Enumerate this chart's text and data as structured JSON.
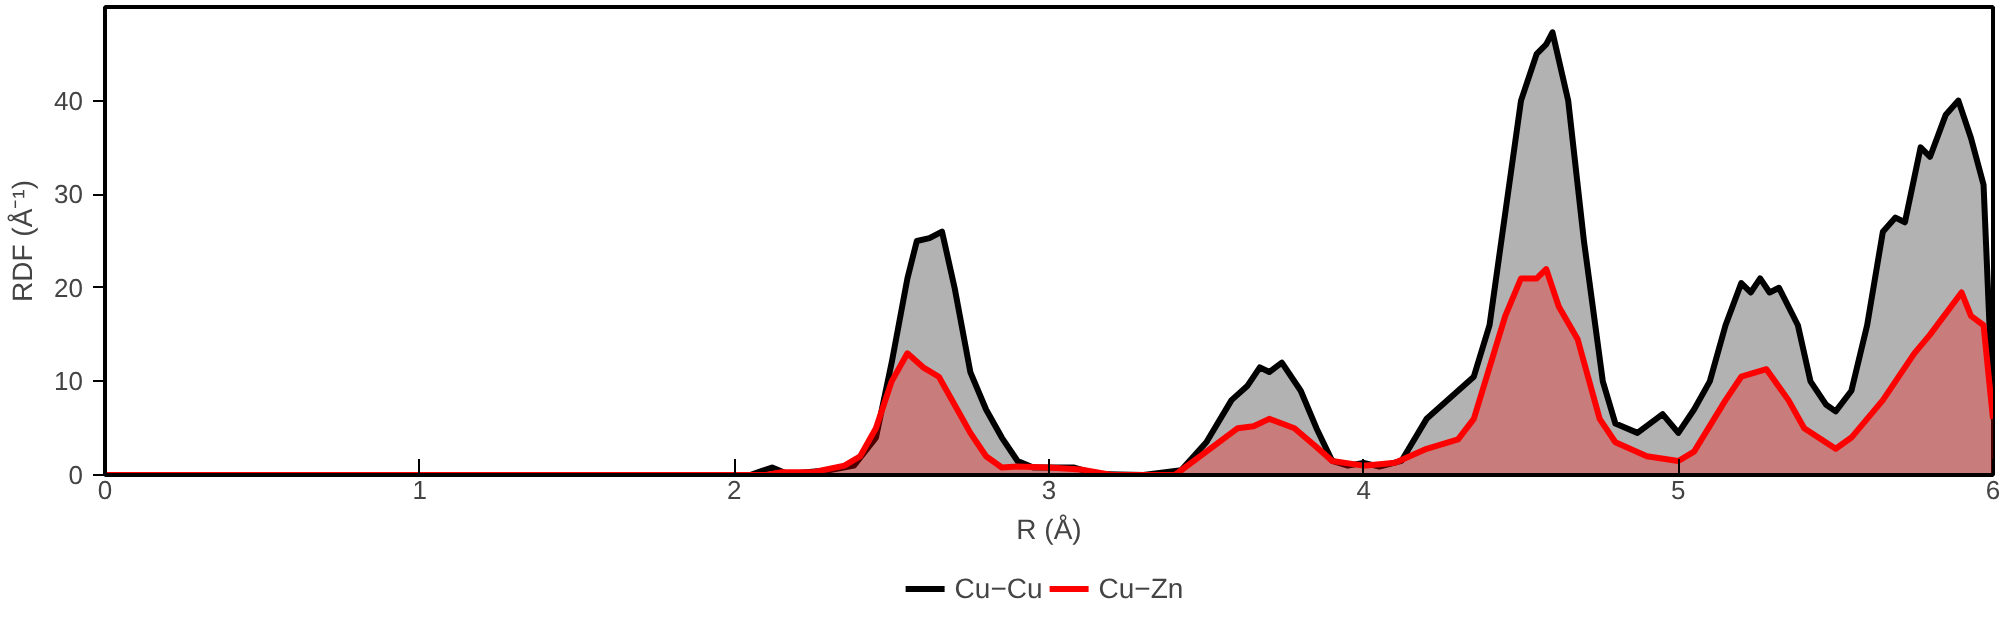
{
  "chart_data": {
    "type": "area",
    "xlabel": "R (Å)",
    "ylabel": "RDF (Å⁻¹)",
    "xlim": [
      0,
      6
    ],
    "ylim": [
      0,
      50
    ],
    "xticks": [
      0,
      1,
      2,
      3,
      4,
      5,
      6
    ],
    "yticks": [
      0,
      10,
      20,
      30,
      40
    ],
    "grid": false,
    "legend": "bottom",
    "series": [
      {
        "name": "Cu−Cu",
        "color": "#000000",
        "x": [
          0,
          2.05,
          2.12,
          2.17,
          2.3,
          2.38,
          2.45,
          2.5,
          2.55,
          2.58,
          2.62,
          2.66,
          2.7,
          2.75,
          2.8,
          2.85,
          2.9,
          2.95,
          3.0,
          3.08,
          3.15,
          3.3,
          3.42,
          3.5,
          3.58,
          3.63,
          3.67,
          3.7,
          3.74,
          3.8,
          3.85,
          3.9,
          3.95,
          4.0,
          4.05,
          4.12,
          4.2,
          4.3,
          4.35,
          4.4,
          4.45,
          4.5,
          4.55,
          4.58,
          4.6,
          4.65,
          4.7,
          4.76,
          4.8,
          4.87,
          4.95,
          5.0,
          5.05,
          5.1,
          5.15,
          5.2,
          5.23,
          5.26,
          5.29,
          5.32,
          5.38,
          5.42,
          5.47,
          5.5,
          5.55,
          5.6,
          5.65,
          5.69,
          5.72,
          5.77,
          5.8,
          5.85,
          5.89,
          5.93,
          5.97,
          6.0
        ],
        "values": [
          0,
          0,
          0.8,
          0.1,
          0.5,
          1.0,
          4,
          12,
          21,
          25,
          25.3,
          26,
          20,
          11,
          7,
          4,
          1.5,
          0.8,
          0.8,
          0.8,
          0.1,
          0,
          0.5,
          3.5,
          8,
          9.5,
          11.5,
          11,
          12,
          9,
          5,
          1.5,
          1,
          1.3,
          0.9,
          1.5,
          6,
          9,
          10.5,
          16,
          28,
          40,
          45,
          46,
          47.3,
          40,
          25,
          10,
          5.5,
          4.5,
          6.5,
          4.5,
          7,
          10,
          16,
          20.5,
          19.5,
          21,
          19.5,
          20,
          16,
          10,
          7.5,
          6.8,
          9,
          16,
          26,
          27.5,
          27,
          35,
          34,
          38.5,
          40,
          36,
          31,
          7
        ]
      },
      {
        "name": "Cu−Zn",
        "color": "#ff0000",
        "x": [
          0,
          2.1,
          2.15,
          2.25,
          2.35,
          2.4,
          2.45,
          2.5,
          2.55,
          2.6,
          2.65,
          2.7,
          2.75,
          2.8,
          2.85,
          2.9,
          3.0,
          3.1,
          3.2,
          3.4,
          3.5,
          3.6,
          3.65,
          3.7,
          3.78,
          3.85,
          3.9,
          4.0,
          4.1,
          4.2,
          4.3,
          4.35,
          4.45,
          4.5,
          4.55,
          4.58,
          4.62,
          4.68,
          4.75,
          4.8,
          4.9,
          5.0,
          5.05,
          5.15,
          5.2,
          5.28,
          5.35,
          5.4,
          5.5,
          5.55,
          5.65,
          5.75,
          5.8,
          5.9,
          5.93,
          5.97,
          6.0
        ],
        "values": [
          0,
          0,
          0.3,
          0.3,
          1,
          2,
          5,
          10,
          13,
          11.5,
          10.5,
          7.5,
          4.5,
          2,
          0.8,
          0.9,
          0.8,
          0.6,
          0,
          0,
          2.5,
          5,
          5.2,
          6,
          5,
          3,
          1.5,
          1,
          1.3,
          2.8,
          3.8,
          6,
          17,
          21,
          21,
          22,
          18,
          14.5,
          6,
          3.5,
          2,
          1.5,
          2.5,
          8,
          10.5,
          11.3,
          8,
          5,
          2.8,
          4,
          8,
          13,
          15,
          19.5,
          17,
          16,
          6
        ]
      }
    ]
  }
}
